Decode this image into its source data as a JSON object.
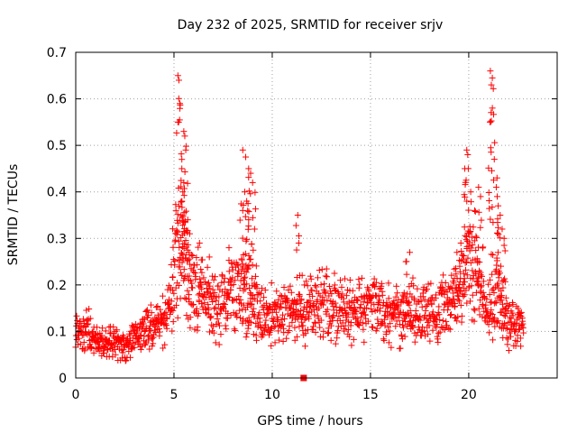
{
  "chart_data": {
    "type": "scatter",
    "title": "Day 232 of 2025, SRMTID for receiver srjv",
    "xlabel": "GPS time / hours",
    "ylabel": "SRMTID / TECUs",
    "xlim": [
      0,
      24.5
    ],
    "ylim": [
      0,
      0.7
    ],
    "xticks": [
      0,
      5,
      10,
      15,
      20
    ],
    "xtick_labels": [
      "0",
      "5",
      "10",
      "15",
      "20"
    ],
    "yticks": [
      0,
      0.1,
      0.2,
      0.3,
      0.4,
      0.5,
      0.6,
      0.7
    ],
    "ytick_labels": [
      "0",
      "0.1",
      "0.2",
      "0.3",
      "0.4",
      "0.5",
      "0.6",
      "0.7"
    ],
    "grid": true,
    "marker": "plus",
    "color": "#ff0000",
    "series": [
      {
        "name": "SRMTID",
        "profile": [
          [
            0.0,
            0.09
          ],
          [
            0.5,
            0.11
          ],
          [
            1.0,
            0.08
          ],
          [
            1.5,
            0.075
          ],
          [
            2.0,
            0.08
          ],
          [
            2.5,
            0.07
          ],
          [
            3.0,
            0.09
          ],
          [
            3.5,
            0.1
          ],
          [
            4.0,
            0.11
          ],
          [
            4.5,
            0.12
          ],
          [
            5.0,
            0.2
          ],
          [
            5.3,
            0.28
          ],
          [
            5.6,
            0.22
          ],
          [
            6.0,
            0.2
          ],
          [
            6.5,
            0.18
          ],
          [
            7.0,
            0.15
          ],
          [
            7.5,
            0.16
          ],
          [
            8.0,
            0.19
          ],
          [
            8.5,
            0.17
          ],
          [
            9.0,
            0.16
          ],
          [
            9.5,
            0.14
          ],
          [
            10.0,
            0.14
          ],
          [
            10.5,
            0.14
          ],
          [
            11.0,
            0.15
          ],
          [
            11.5,
            0.14
          ],
          [
            12.0,
            0.15
          ],
          [
            12.5,
            0.16
          ],
          [
            13.0,
            0.15
          ],
          [
            13.5,
            0.15
          ],
          [
            14.0,
            0.14
          ],
          [
            14.5,
            0.15
          ],
          [
            15.0,
            0.16
          ],
          [
            15.5,
            0.15
          ],
          [
            16.0,
            0.14
          ],
          [
            16.5,
            0.13
          ],
          [
            17.0,
            0.14
          ],
          [
            17.5,
            0.13
          ],
          [
            18.0,
            0.14
          ],
          [
            18.5,
            0.15
          ],
          [
            19.0,
            0.16
          ],
          [
            19.5,
            0.18
          ],
          [
            20.0,
            0.25
          ],
          [
            20.5,
            0.2
          ],
          [
            21.0,
            0.14
          ],
          [
            21.5,
            0.18
          ],
          [
            22.0,
            0.12
          ],
          [
            22.5,
            0.11
          ],
          [
            22.8,
            0.1
          ]
        ],
        "bursts": [
          [
            5.2,
            0.65
          ],
          [
            5.25,
            0.64
          ],
          [
            5.3,
            0.59
          ],
          [
            5.2,
            0.55
          ],
          [
            5.5,
            0.53
          ],
          [
            5.55,
            0.52
          ],
          [
            5.6,
            0.49
          ],
          [
            5.4,
            0.45
          ],
          [
            5.5,
            0.42
          ],
          [
            5.45,
            0.4
          ],
          [
            5.4,
            0.38
          ],
          [
            5.1,
            0.36
          ],
          [
            5.7,
            0.34
          ],
          [
            5.8,
            0.31
          ],
          [
            8.5,
            0.49
          ],
          [
            8.65,
            0.475
          ],
          [
            8.8,
            0.45
          ],
          [
            8.9,
            0.44
          ],
          [
            9.0,
            0.42
          ],
          [
            8.6,
            0.4
          ],
          [
            8.7,
            0.38
          ],
          [
            8.5,
            0.36
          ],
          [
            8.8,
            0.34
          ],
          [
            9.1,
            0.32
          ],
          [
            11.3,
            0.35
          ],
          [
            11.35,
            0.29
          ],
          [
            19.9,
            0.49
          ],
          [
            19.95,
            0.48
          ],
          [
            19.8,
            0.45
          ],
          [
            20.1,
            0.4
          ],
          [
            19.9,
            0.38
          ],
          [
            20.3,
            0.36
          ],
          [
            20.5,
            0.41
          ],
          [
            20.6,
            0.39
          ],
          [
            21.1,
            0.66
          ],
          [
            21.2,
            0.645
          ],
          [
            21.15,
            0.63
          ],
          [
            21.1,
            0.55
          ],
          [
            21.3,
            0.47
          ],
          [
            21.4,
            0.41
          ],
          [
            21.45,
            0.39
          ],
          [
            21.5,
            0.37
          ],
          [
            21.6,
            0.35
          ],
          [
            21.7,
            0.32
          ],
          [
            21.8,
            0.3
          ],
          [
            17.0,
            0.27
          ],
          [
            16.8,
            0.25
          ],
          [
            19.6,
            0.29
          ],
          [
            19.4,
            0.27
          ],
          [
            7.8,
            0.28
          ],
          [
            6.3,
            0.29
          ],
          [
            6.8,
            0.26
          ]
        ],
        "marker_square": [
          11.6,
          0.0
        ]
      }
    ]
  }
}
